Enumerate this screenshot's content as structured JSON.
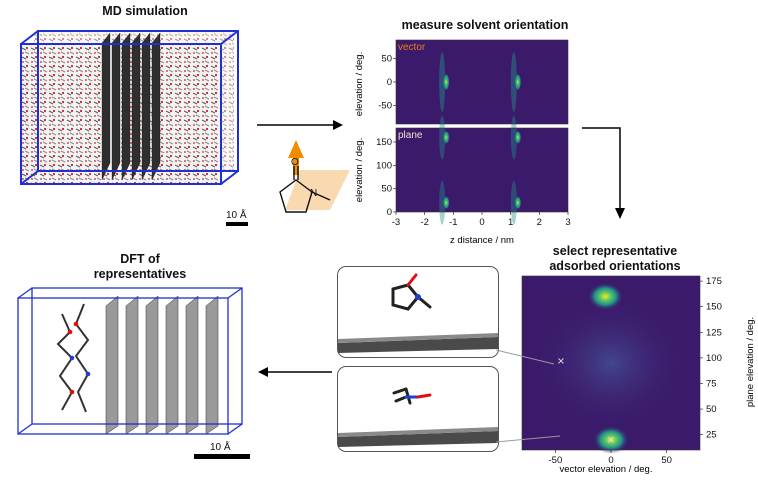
{
  "panels": {
    "md": {
      "title": "MD simulation",
      "scale": "10 Å"
    },
    "measure": {
      "title": "measure solvent orientation",
      "top_tag": "vector",
      "bottom_tag": "plane",
      "top_ylabel": "elevation / deg.",
      "bottom_ylabel": "elevation / deg.",
      "xlabel": "z distance / nm",
      "top_yticks": [
        "50",
        "0",
        "-50"
      ],
      "bottom_yticks": [
        "150",
        "100",
        "50",
        "0"
      ],
      "xticks": [
        "-3",
        "-2",
        "-1",
        "0",
        "1",
        "2",
        "3"
      ]
    },
    "select": {
      "title_line1": "select representative",
      "title_line2": "adsorbed orientations",
      "xlabel": "vector elevation / deg.",
      "ylabel": "plane elevation / deg.",
      "xticks": [
        "-50",
        "0",
        "50"
      ],
      "yticks": [
        "175",
        "150",
        "125",
        "100",
        "75",
        "50",
        "25"
      ]
    },
    "dft": {
      "title_line1": "DFT of",
      "title_line2": "representatives",
      "scale": "10 Å"
    }
  },
  "colors": {
    "box": "#1f2fd6",
    "arrow": "#f08c00",
    "viridis_bg": "#3b1a6b"
  },
  "chart_data": [
    {
      "type": "heatmap",
      "title": "measure solvent orientation",
      "panel": "vector",
      "xlabel": "z distance / nm",
      "ylabel": "elevation / deg.",
      "xlim": [
        -3,
        3
      ],
      "ylim": [
        -90,
        90
      ],
      "hotspots": [
        {
          "x": -1.25,
          "y": 0
        },
        {
          "x": 1.25,
          "y": 0
        }
      ]
    },
    {
      "type": "heatmap",
      "panel": "plane",
      "xlabel": "z distance / nm",
      "ylabel": "elevation / deg.",
      "xlim": [
        -3,
        3
      ],
      "ylim": [
        0,
        180
      ],
      "hotspots": [
        {
          "x": -1.25,
          "y": 160
        },
        {
          "x": -1.25,
          "y": 20
        },
        {
          "x": 1.25,
          "y": 160
        },
        {
          "x": 1.25,
          "y": 20
        }
      ]
    },
    {
      "type": "heatmap",
      "title": "select representative adsorbed orientations",
      "xlabel": "vector elevation / deg.",
      "ylabel": "plane elevation / deg.",
      "xlim": [
        -80,
        80
      ],
      "ylim": [
        10,
        180
      ],
      "hotspots": [
        {
          "x": -5,
          "y": 160
        },
        {
          "x": 0,
          "y": 20
        }
      ],
      "selected_points": [
        {
          "x": -45,
          "y": 97
        },
        {
          "x": 0,
          "y": 20
        }
      ]
    }
  ]
}
